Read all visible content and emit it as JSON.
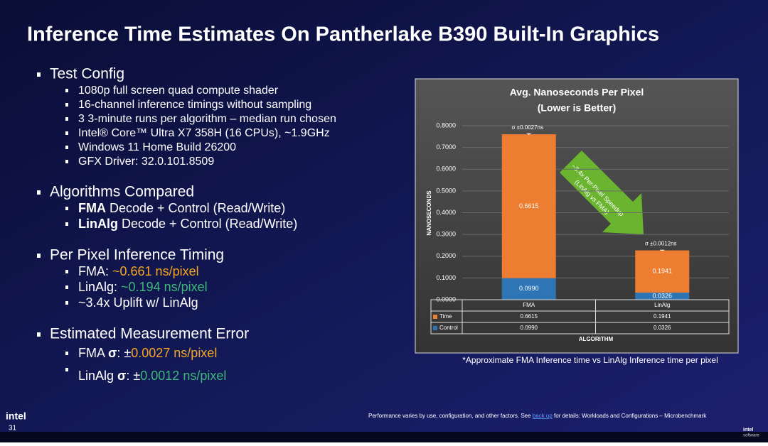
{
  "title": "Inference Time Estimates On Pantherlake B390 Built-In Graphics",
  "sections": [
    {
      "heading": "Test Config",
      "items": [
        [
          {
            "text": "1080p full screen quad compute shader"
          }
        ],
        [
          {
            "text": "16-channel inference timings without sampling"
          }
        ],
        [
          {
            "text": "3 3-minute runs per algorithm – median run chosen"
          }
        ],
        [
          {
            "text": "Intel® Core™ Ultra X7 358H (16 CPUs), ~1.9GHz"
          }
        ],
        [
          {
            "text": "Windows 11 Home Build 26200"
          }
        ],
        [
          {
            "text": "GFX Driver: 32.0.101.8509"
          }
        ]
      ]
    },
    {
      "heading": "Algorithms Compared",
      "items": [
        [
          {
            "text": "FMA",
            "bold": true
          },
          {
            "text": " Decode + Control (Read/Write)"
          }
        ],
        [
          {
            "text": "LinAlg",
            "bold": true
          },
          {
            "text": " Decode + Control (Read/Write)"
          }
        ]
      ]
    },
    {
      "heading": "Per Pixel Inference Timing",
      "items": [
        [
          {
            "text": "FMA: "
          },
          {
            "text": "~0.661 ns/pixel",
            "color": "#f5a623"
          }
        ],
        [
          {
            "text": "LinAlg: "
          },
          {
            "text": "~0.194 ns/pixel",
            "color": "#3cb878"
          }
        ],
        [
          {
            "text": "~3.4x Uplift w/ LinAlg"
          }
        ]
      ]
    },
    {
      "heading": "Estimated Measurement Error",
      "items": [
        [
          {
            "text": "FMA "
          },
          {
            "text": "σ",
            "bold": true
          },
          {
            "text": ": ±"
          },
          {
            "text": "0.0027 ns/pixel",
            "color": "#f5a623"
          }
        ],
        [
          {
            "text": "LinAlg "
          },
          {
            "text": "σ",
            "bold": true
          },
          {
            "text": ": ±"
          },
          {
            "text": "0.0012 ns/pixel",
            "color": "#3cb878"
          }
        ]
      ]
    }
  ],
  "chart_data": {
    "type": "stacked_bar",
    "title": "Avg. Nanoseconds Per Pixel",
    "subtitle": "(Lower is Better)",
    "x_label": "ALGORITHM",
    "y_label": "NANOSECONDS",
    "categories": [
      "FMA",
      "LinAlg"
    ],
    "series": [
      {
        "name": "Control",
        "color": "#2e75b6",
        "values": [
          0.099,
          0.0326
        ],
        "value_labels": [
          "0.0990",
          "0.0326"
        ]
      },
      {
        "name": "Time",
        "color": "#ed7d31",
        "values": [
          0.6615,
          0.1941
        ],
        "value_labels": [
          "0.6615",
          "0.1941"
        ]
      }
    ],
    "errors": [
      0.0027,
      0.0012
    ],
    "error_labels": [
      "σ ±0.0027ns",
      "σ ±0.0012ns"
    ],
    "ylim": [
      0,
      0.8
    ],
    "yticks": [
      {
        "value": 0,
        "label": "0.0000"
      },
      {
        "value": 0.1,
        "label": "0.1000"
      },
      {
        "value": 0.2,
        "label": "0.2000"
      },
      {
        "value": 0.3,
        "label": "0.3000"
      },
      {
        "value": 0.4,
        "label": "0.4000"
      },
      {
        "value": 0.5,
        "label": "0.5000"
      },
      {
        "value": 0.6,
        "label": "0.6000"
      },
      {
        "value": 0.7,
        "label": "0.7000"
      },
      {
        "value": 0.8,
        "label": "0.8000"
      }
    ],
    "grid": true,
    "annotation": [
      "~3.4x Per-Pixel Speedup",
      "(LinAlg vs FMA)"
    ],
    "footnote": "*Approximate FMA Inference time vs LinAlg Inference time per pixel"
  },
  "footer": {
    "text": "Performance varies by use, configuration, and other factors. See ",
    "link": "back up",
    "text2": " for details: Workloads and Configurations – Microbenchmark"
  },
  "logo": "intel",
  "page_number": "31",
  "corner_logo": [
    "intel",
    "software"
  ]
}
